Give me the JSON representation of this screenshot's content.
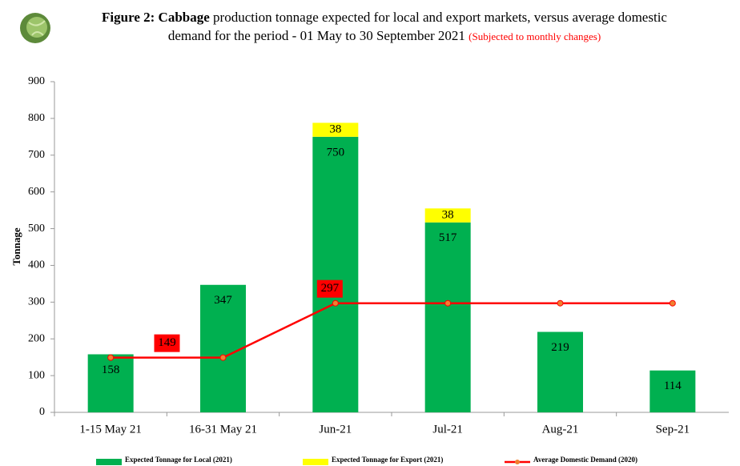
{
  "chart_data": {
    "type": "bar",
    "title_bold": "Figure 2: Cabbage",
    "title": "production tonnage expected for local and export markets, versus average domestic demand for the period - 01 May to 30 September 2021",
    "subtitle": "(Subjected to monthly changes)",
    "y_label": "Tonnage",
    "categories": [
      "1-15 May 21",
      "16-31 May 21",
      "Jun-21",
      "Jul-21",
      "Aug-21",
      "Sep-21"
    ],
    "series": [
      {
        "name": "Expected Tonnage for Local (2021)",
        "color": "#00b050",
        "values": [
          158,
          347,
          750,
          517,
          219,
          114
        ]
      },
      {
        "name": "Expected Tonnage for Export (2021)",
        "color": "#ffff00",
        "values": [
          null,
          null,
          38,
          38,
          null,
          null
        ]
      },
      {
        "name": "Average Domestic Demand (2020)",
        "type": "line",
        "color": "#ff0000",
        "values": [
          149,
          149,
          297,
          297,
          297,
          297
        ],
        "value_labels": [
          null,
          "149",
          "297",
          null,
          null,
          null
        ]
      }
    ],
    "ylim": [
      0,
      900
    ],
    "yticks": [
      0,
      100,
      200,
      300,
      400,
      500,
      600,
      700,
      800,
      900
    ],
    "grid": false
  }
}
